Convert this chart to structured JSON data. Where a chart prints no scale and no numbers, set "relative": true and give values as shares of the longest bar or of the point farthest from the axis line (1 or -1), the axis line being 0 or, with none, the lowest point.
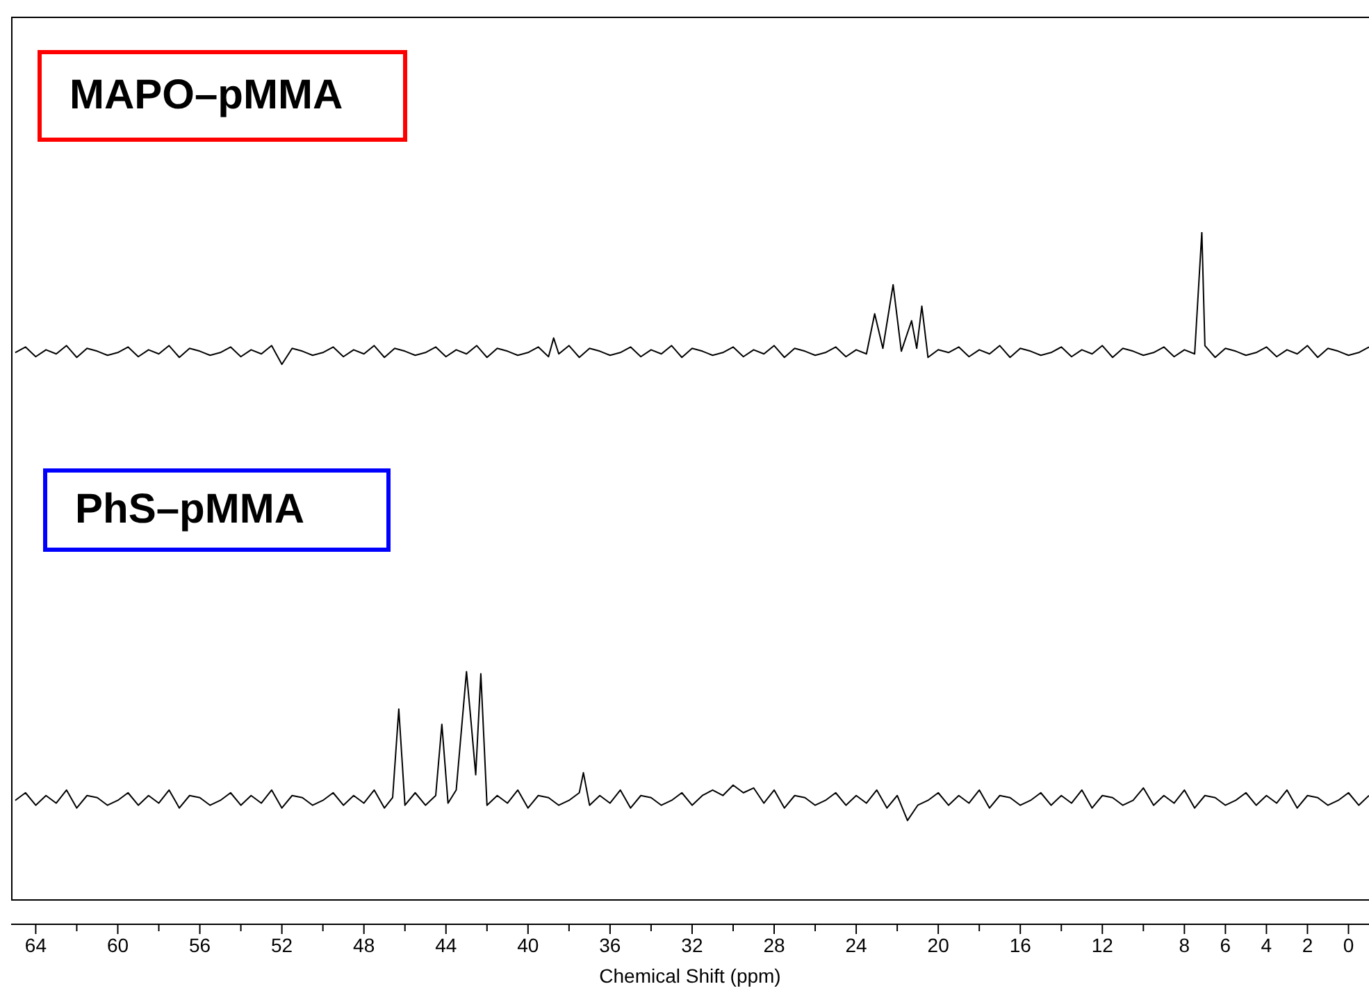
{
  "chart_data": {
    "type": "line",
    "relative": true,
    "xlim": [
      65.2,
      -1
    ],
    "xlabel": "Chemical Shift (ppm)",
    "annotations": [
      "MAPO–pMMA",
      "PhS–pMMA"
    ],
    "xticks": [
      64,
      {
        "value": 62,
        "label": null
      },
      60,
      {
        "value": 58,
        "label": null
      },
      56,
      {
        "value": 54,
        "label": null
      },
      52,
      {
        "value": 50,
        "label": null
      },
      48,
      {
        "value": 46,
        "label": null
      },
      44,
      {
        "value": 42,
        "label": null
      },
      40,
      {
        "value": 38,
        "label": null
      },
      36,
      {
        "value": 34,
        "label": null
      },
      32,
      {
        "value": 30,
        "label": null
      },
      28,
      {
        "value": 26,
        "label": null
      },
      24,
      {
        "value": 22,
        "label": null
      },
      20,
      {
        "value": 18,
        "label": null
      },
      16,
      {
        "value": 14,
        "label": null
      },
      12,
      {
        "value": 10,
        "label": null
      },
      8,
      6,
      4,
      2,
      0
    ],
    "series": [
      {
        "color": "#000000",
        "x": [
          65,
          64.5,
          64,
          63.5,
          63,
          62.5,
          62,
          61.5,
          61,
          60.5,
          60,
          59.5,
          59,
          58.5,
          58,
          57.5,
          57,
          56.5,
          56,
          55.5,
          55,
          54.5,
          54,
          53.5,
          53,
          52.5,
          52,
          51.5,
          51,
          50.5,
          50,
          49.5,
          49,
          48.5,
          48,
          47.5,
          47,
          46.5,
          46,
          45.5,
          45,
          44.5,
          44,
          43.5,
          43,
          42.5,
          42,
          41.5,
          41,
          40.5,
          40,
          39.5,
          39,
          38.75,
          38.5,
          38,
          37.5,
          37,
          36.5,
          36,
          35.5,
          35,
          34.5,
          34,
          33.5,
          33,
          32.5,
          32,
          31.5,
          31,
          30.5,
          30,
          29.5,
          29,
          28.5,
          28,
          27.5,
          27,
          26.5,
          26,
          25.5,
          25,
          24.5,
          24,
          23.5,
          23.1,
          22.7,
          22.2,
          21.8,
          21.3,
          21.05,
          20.8,
          20.5,
          20,
          19.5,
          19,
          18.5,
          18,
          17.5,
          17,
          16.5,
          16,
          15.5,
          15,
          14.5,
          14,
          13.5,
          13,
          12.5,
          12,
          11.5,
          11,
          10.5,
          10,
          9.5,
          9,
          8.5,
          8,
          7.5,
          7.15,
          7,
          6.5,
          6,
          5.5,
          5,
          4.5,
          4,
          3.5,
          3,
          2.5,
          2,
          1.5,
          1,
          0.5,
          0,
          -0.5,
          -1
        ],
        "values": [
          0.826,
          0.834,
          0.82,
          0.83,
          0.824,
          0.836,
          0.819,
          0.832,
          0.828,
          0.822,
          0.826,
          0.834,
          0.82,
          0.83,
          0.824,
          0.836,
          0.819,
          0.832,
          0.828,
          0.822,
          0.826,
          0.834,
          0.82,
          0.83,
          0.824,
          0.836,
          0.809,
          0.832,
          0.828,
          0.822,
          0.826,
          0.834,
          0.82,
          0.83,
          0.824,
          0.836,
          0.819,
          0.832,
          0.828,
          0.822,
          0.826,
          0.834,
          0.82,
          0.83,
          0.824,
          0.836,
          0.819,
          0.832,
          0.828,
          0.822,
          0.826,
          0.834,
          0.82,
          0.847,
          0.824,
          0.836,
          0.819,
          0.832,
          0.828,
          0.822,
          0.826,
          0.834,
          0.82,
          0.83,
          0.824,
          0.836,
          0.819,
          0.832,
          0.828,
          0.822,
          0.826,
          0.834,
          0.82,
          0.83,
          0.824,
          0.836,
          0.819,
          0.832,
          0.828,
          0.822,
          0.826,
          0.834,
          0.82,
          0.83,
          0.824,
          0.882,
          0.832,
          0.924,
          0.828,
          0.872,
          0.832,
          0.893,
          0.819,
          0.83,
          0.826,
          0.834,
          0.82,
          0.83,
          0.824,
          0.836,
          0.819,
          0.832,
          0.828,
          0.822,
          0.826,
          0.834,
          0.82,
          0.83,
          0.824,
          0.836,
          0.819,
          0.832,
          0.828,
          0.822,
          0.826,
          0.834,
          0.82,
          0.83,
          0.824,
          1,
          0.836,
          0.819,
          0.832,
          0.828,
          0.822,
          0.826,
          0.834,
          0.82,
          0.83,
          0.824,
          0.836,
          0.819,
          0.832,
          0.828,
          0.822,
          0.826,
          0.834
        ]
      },
      {
        "color": "#000000",
        "x": [
          65,
          64.5,
          64,
          63.5,
          63,
          62.5,
          62,
          61.5,
          61,
          60.5,
          60,
          59.5,
          59,
          58.5,
          58,
          57.5,
          57,
          56.5,
          56,
          55.5,
          55,
          54.5,
          54,
          53.5,
          53,
          52.5,
          52,
          51.5,
          51,
          50.5,
          50,
          49.5,
          49,
          48.5,
          48,
          47.5,
          47,
          46.6,
          46.3,
          46,
          45.5,
          45,
          44.5,
          44.2,
          43.9,
          43.5,
          43,
          42.8,
          42.55,
          42.3,
          42,
          41.5,
          41,
          40.5,
          40,
          39.5,
          39,
          38.5,
          38,
          37.5,
          37.3,
          37,
          36.5,
          36,
          35.5,
          35,
          34.5,
          34,
          33.5,
          33,
          32.5,
          32,
          31.5,
          31,
          30.5,
          30,
          29.5,
          29,
          28.5,
          28,
          27.5,
          27,
          26.5,
          26,
          25.5,
          25,
          24.5,
          24,
          23.5,
          23,
          22.5,
          22,
          21.5,
          21,
          20.5,
          20,
          19.5,
          19,
          18.5,
          18,
          17.5,
          17,
          16.5,
          16,
          15.5,
          15,
          14.5,
          14,
          13.5,
          13,
          12.5,
          12,
          11.5,
          11,
          10.5,
          10,
          9.5,
          9,
          8.5,
          8,
          7.5,
          7,
          6.5,
          6,
          5.5,
          5,
          4.5,
          4,
          3.5,
          3,
          2.5,
          2,
          1.5,
          1,
          0.5,
          0,
          -0.5,
          -1
        ],
        "values": [
          0.179,
          0.19,
          0.172,
          0.186,
          0.175,
          0.194,
          0.168,
          0.186,
          0.183,
          0.172,
          0.179,
          0.19,
          0.172,
          0.186,
          0.175,
          0.194,
          0.168,
          0.186,
          0.183,
          0.172,
          0.179,
          0.19,
          0.172,
          0.186,
          0.175,
          0.194,
          0.168,
          0.186,
          0.183,
          0.172,
          0.179,
          0.19,
          0.172,
          0.186,
          0.175,
          0.194,
          0.168,
          0.183,
          0.311,
          0.172,
          0.19,
          0.172,
          0.186,
          0.289,
          0.175,
          0.194,
          0.365,
          0.3,
          0.216,
          0.362,
          0.172,
          0.186,
          0.175,
          0.194,
          0.168,
          0.186,
          0.183,
          0.172,
          0.179,
          0.19,
          0.219,
          0.172,
          0.186,
          0.175,
          0.194,
          0.168,
          0.186,
          0.183,
          0.172,
          0.179,
          0.19,
          0.172,
          0.186,
          0.194,
          0.186,
          0.201,
          0.19,
          0.197,
          0.175,
          0.194,
          0.168,
          0.186,
          0.183,
          0.172,
          0.179,
          0.19,
          0.172,
          0.186,
          0.175,
          0.194,
          0.168,
          0.186,
          0.15,
          0.172,
          0.179,
          0.19,
          0.172,
          0.186,
          0.175,
          0.194,
          0.168,
          0.186,
          0.183,
          0.172,
          0.179,
          0.19,
          0.172,
          0.186,
          0.175,
          0.194,
          0.168,
          0.186,
          0.183,
          0.172,
          0.179,
          0.197,
          0.172,
          0.186,
          0.175,
          0.194,
          0.168,
          0.186,
          0.183,
          0.172,
          0.179,
          0.19,
          0.172,
          0.186,
          0.175,
          0.194,
          0.168,
          0.186,
          0.183,
          0.172,
          0.179,
          0.19,
          0.172,
          0.186
        ]
      }
    ]
  }
}
